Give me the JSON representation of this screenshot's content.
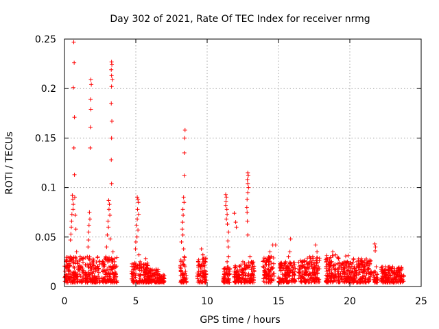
{
  "chart_data": {
    "type": "scatter",
    "title": "Day 302 of 2021, Rate Of TEC Index for receiver nrmg",
    "xlabel": "GPS time / hours",
    "ylabel": "ROTI / TECUs",
    "xlim": [
      0,
      25
    ],
    "ylim": [
      0,
      0.25
    ],
    "xticks": [
      0,
      5,
      10,
      15,
      20,
      25
    ],
    "xtick_labels": [
      "0",
      "5",
      "10",
      "15",
      "20",
      "25"
    ],
    "yticks": [
      0,
      0.05,
      0.1,
      0.15,
      0.2,
      0.25
    ],
    "ytick_labels": [
      "0",
      "0.05",
      "0.1",
      "0.15",
      "0.2",
      "0.25"
    ],
    "grid": true,
    "marker": "+",
    "color": "#ff0000",
    "series": [
      {
        "name": "ROTI",
        "points": [
          [
            0.65,
            0.247
          ],
          [
            0.68,
            0.226
          ],
          [
            0.62,
            0.201
          ],
          [
            0.7,
            0.171
          ],
          [
            0.66,
            0.14
          ],
          [
            0.7,
            0.113
          ],
          [
            0.55,
            0.092
          ],
          [
            0.58,
            0.088
          ],
          [
            0.62,
            0.083
          ],
          [
            0.6,
            0.078
          ],
          [
            0.52,
            0.073
          ],
          [
            0.5,
            0.066
          ],
          [
            0.48,
            0.06
          ],
          [
            0.45,
            0.053
          ],
          [
            0.42,
            0.047
          ],
          [
            0.72,
            0.09
          ],
          [
            0.75,
            0.072
          ],
          [
            0.8,
            0.058
          ],
          [
            0.35,
            0.02
          ],
          [
            0.3,
            0.015
          ],
          [
            0.2,
            0.01
          ],
          [
            0.1,
            0.012
          ],
          [
            0.15,
            0.018
          ],
          [
            0.25,
            0.022
          ],
          [
            0.4,
            0.03
          ],
          [
            0.9,
            0.025
          ],
          [
            1.1,
            0.03
          ],
          [
            1.3,
            0.028
          ],
          [
            1.0,
            0.02
          ],
          [
            0.85,
            0.035
          ],
          [
            1.85,
            0.209
          ],
          [
            1.88,
            0.204
          ],
          [
            1.83,
            0.189
          ],
          [
            1.85,
            0.179
          ],
          [
            1.82,
            0.161
          ],
          [
            1.8,
            0.14
          ],
          [
            1.75,
            0.075
          ],
          [
            1.72,
            0.062
          ],
          [
            1.7,
            0.055
          ],
          [
            1.68,
            0.047
          ],
          [
            1.78,
            0.068
          ],
          [
            1.65,
            0.04
          ],
          [
            2.0,
            0.025
          ],
          [
            2.2,
            0.018
          ],
          [
            2.4,
            0.014
          ],
          [
            1.5,
            0.022
          ],
          [
            1.6,
            0.03
          ],
          [
            3.3,
            0.227
          ],
          [
            3.32,
            0.224
          ],
          [
            3.28,
            0.219
          ],
          [
            3.3,
            0.213
          ],
          [
            3.35,
            0.209
          ],
          [
            3.3,
            0.202
          ],
          [
            3.28,
            0.185
          ],
          [
            3.32,
            0.167
          ],
          [
            3.3,
            0.15
          ],
          [
            3.28,
            0.128
          ],
          [
            3.3,
            0.104
          ],
          [
            3.1,
            0.087
          ],
          [
            3.15,
            0.083
          ],
          [
            3.12,
            0.078
          ],
          [
            3.18,
            0.072
          ],
          [
            3.05,
            0.066
          ],
          [
            3.08,
            0.06
          ],
          [
            3.0,
            0.052
          ],
          [
            3.2,
            0.048
          ],
          [
            2.95,
            0.04
          ],
          [
            2.9,
            0.03
          ],
          [
            2.8,
            0.022
          ],
          [
            3.4,
            0.035
          ],
          [
            3.5,
            0.025
          ],
          [
            2.7,
            0.015
          ],
          [
            3.6,
            0.012
          ],
          [
            5.1,
            0.09
          ],
          [
            5.15,
            0.088
          ],
          [
            5.18,
            0.085
          ],
          [
            5.12,
            0.078
          ],
          [
            5.2,
            0.073
          ],
          [
            5.1,
            0.068
          ],
          [
            5.05,
            0.062
          ],
          [
            5.15,
            0.057
          ],
          [
            5.08,
            0.05
          ],
          [
            5.0,
            0.045
          ],
          [
            4.98,
            0.038
          ],
          [
            5.22,
            0.032
          ],
          [
            5.3,
            0.025
          ],
          [
            5.5,
            0.02
          ],
          [
            5.7,
            0.028
          ],
          [
            5.8,
            0.022
          ],
          [
            6.0,
            0.018
          ],
          [
            4.8,
            0.012
          ],
          [
            6.3,
            0.012
          ],
          [
            6.5,
            0.015
          ],
          [
            6.8,
            0.01
          ],
          [
            6.9,
            0.008
          ],
          [
            8.45,
            0.158
          ],
          [
            8.42,
            0.15
          ],
          [
            8.4,
            0.135
          ],
          [
            8.4,
            0.112
          ],
          [
            8.35,
            0.09
          ],
          [
            8.38,
            0.085
          ],
          [
            8.3,
            0.078
          ],
          [
            8.32,
            0.072
          ],
          [
            8.28,
            0.065
          ],
          [
            8.25,
            0.058
          ],
          [
            8.3,
            0.052
          ],
          [
            8.2,
            0.045
          ],
          [
            8.35,
            0.038
          ],
          [
            8.4,
            0.03
          ],
          [
            8.25,
            0.025
          ],
          [
            8.45,
            0.02
          ],
          [
            8.3,
            0.012
          ],
          [
            9.6,
            0.038
          ],
          [
            9.7,
            0.032
          ],
          [
            9.8,
            0.025
          ],
          [
            9.5,
            0.02
          ],
          [
            9.9,
            0.015
          ],
          [
            9.4,
            0.012
          ],
          [
            11.3,
            0.093
          ],
          [
            11.35,
            0.09
          ],
          [
            11.32,
            0.086
          ],
          [
            11.3,
            0.082
          ],
          [
            11.38,
            0.078
          ],
          [
            11.4,
            0.073
          ],
          [
            11.35,
            0.068
          ],
          [
            11.42,
            0.063
          ],
          [
            11.5,
            0.055
          ],
          [
            11.45,
            0.046
          ],
          [
            11.48,
            0.04
          ],
          [
            11.5,
            0.03
          ],
          [
            11.4,
            0.025
          ],
          [
            11.3,
            0.012
          ],
          [
            11.6,
            0.018
          ],
          [
            11.9,
            0.074
          ],
          [
            12.0,
            0.065
          ],
          [
            12.05,
            0.06
          ],
          [
            12.3,
            0.02
          ],
          [
            12.5,
            0.025
          ],
          [
            12.7,
            0.02
          ],
          [
            12.1,
            0.015
          ],
          [
            12.4,
            0.012
          ],
          [
            12.85,
            0.115
          ],
          [
            12.88,
            0.112
          ],
          [
            12.82,
            0.108
          ],
          [
            12.85,
            0.104
          ],
          [
            12.9,
            0.1
          ],
          [
            12.85,
            0.095
          ],
          [
            12.8,
            0.088
          ],
          [
            12.78,
            0.08
          ],
          [
            12.8,
            0.075
          ],
          [
            12.82,
            0.066
          ],
          [
            12.85,
            0.052
          ],
          [
            13.0,
            0.03
          ],
          [
            13.1,
            0.025
          ],
          [
            13.2,
            0.02
          ],
          [
            13.3,
            0.015
          ],
          [
            14.1,
            0.018
          ],
          [
            14.3,
            0.025
          ],
          [
            14.5,
            0.03
          ],
          [
            14.6,
            0.042
          ],
          [
            14.8,
            0.042
          ],
          [
            14.4,
            0.035
          ],
          [
            14.2,
            0.012
          ],
          [
            15.3,
            0.018
          ],
          [
            15.5,
            0.025
          ],
          [
            15.7,
            0.03
          ],
          [
            15.8,
            0.035
          ],
          [
            15.85,
            0.048
          ],
          [
            16.0,
            0.02
          ],
          [
            16.1,
            0.012
          ],
          [
            17.2,
            0.025
          ],
          [
            17.4,
            0.03
          ],
          [
            17.6,
            0.042
          ],
          [
            17.7,
            0.035
          ],
          [
            17.8,
            0.02
          ],
          [
            17.0,
            0.015
          ],
          [
            16.8,
            0.012
          ],
          [
            18.6,
            0.025
          ],
          [
            18.8,
            0.035
          ],
          [
            19.0,
            0.032
          ],
          [
            19.2,
            0.028
          ],
          [
            19.6,
            0.025
          ],
          [
            20.0,
            0.022
          ],
          [
            20.5,
            0.025
          ],
          [
            20.8,
            0.028
          ],
          [
            21.0,
            0.02
          ],
          [
            21.3,
            0.018
          ],
          [
            21.5,
            0.015
          ],
          [
            19.8,
            0.02
          ],
          [
            21.75,
            0.043
          ],
          [
            21.8,
            0.04
          ],
          [
            21.78,
            0.036
          ],
          [
            21.85,
            0.02
          ],
          [
            22.5,
            0.02
          ],
          [
            22.8,
            0.018
          ],
          [
            23.0,
            0.02
          ],
          [
            23.3,
            0.018
          ],
          [
            23.5,
            0.015
          ],
          [
            22.3,
            0.015
          ]
        ],
        "bands": [
          [
            0.0,
            1.4,
            0.004,
            0.03
          ],
          [
            1.45,
            2.5,
            0.004,
            0.03
          ],
          [
            2.6,
            3.7,
            0.004,
            0.03
          ],
          [
            4.7,
            5.9,
            0.004,
            0.025
          ],
          [
            5.9,
            6.6,
            0.004,
            0.018
          ],
          [
            6.6,
            7.0,
            0.004,
            0.012
          ],
          [
            8.1,
            8.55,
            0.004,
            0.03
          ],
          [
            9.3,
            9.95,
            0.004,
            0.03
          ],
          [
            11.1,
            11.6,
            0.004,
            0.02
          ],
          [
            11.9,
            12.6,
            0.004,
            0.022
          ],
          [
            12.6,
            13.3,
            0.004,
            0.025
          ],
          [
            13.9,
            14.7,
            0.004,
            0.03
          ],
          [
            15.0,
            16.2,
            0.004,
            0.025
          ],
          [
            16.4,
            17.9,
            0.004,
            0.03
          ],
          [
            18.3,
            20.0,
            0.004,
            0.032
          ],
          [
            20.0,
            21.5,
            0.004,
            0.028
          ],
          [
            21.65,
            21.95,
            0.004,
            0.015
          ],
          [
            22.2,
            23.8,
            0.004,
            0.02
          ]
        ]
      }
    ]
  }
}
